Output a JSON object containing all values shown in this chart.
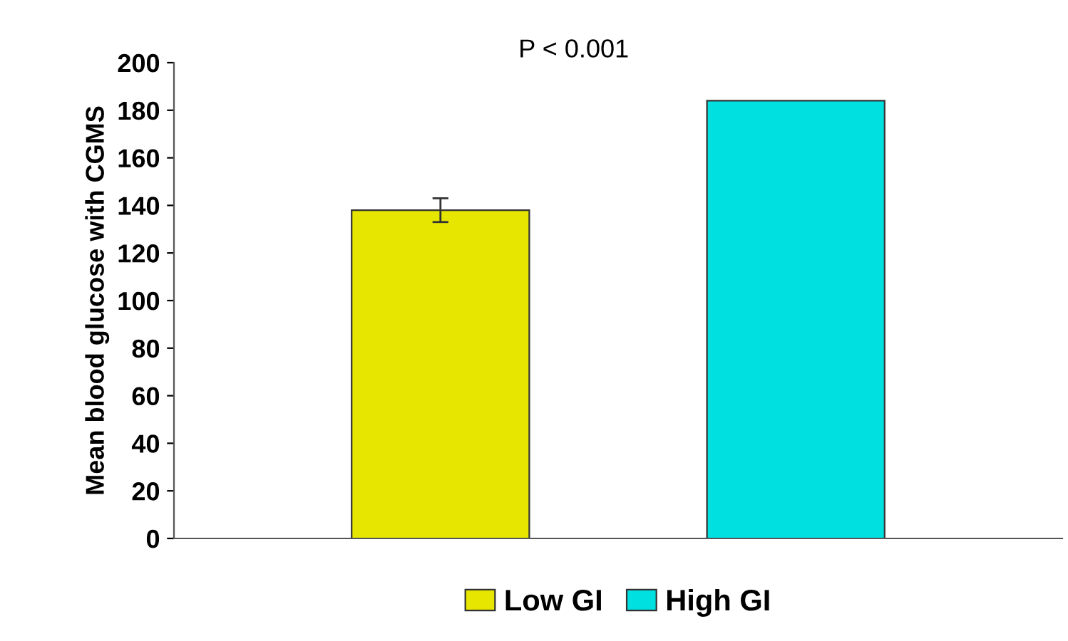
{
  "chart_data": {
    "type": "bar",
    "ylabel": "Mean blood glucose with CGMS",
    "categories": [
      null
    ],
    "series": [
      {
        "name": "Low GI",
        "color": "#e6e600",
        "values": [
          138
        ],
        "errors": [
          5
        ]
      },
      {
        "name": "High GI",
        "color": "#00e0e0",
        "values": [
          184
        ]
      }
    ],
    "ylim": [
      0,
      200
    ],
    "yticks": [
      0,
      20,
      40,
      60,
      80,
      100,
      120,
      140,
      160,
      180,
      200
    ],
    "grid": false,
    "legend": "bottom",
    "annotations": [
      {
        "text": "P < 0.001"
      }
    ]
  }
}
